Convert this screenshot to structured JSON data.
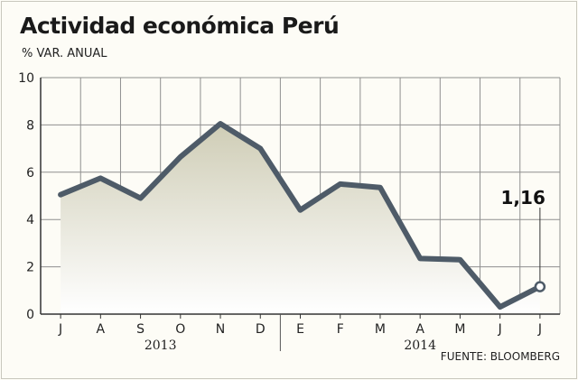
{
  "header": {
    "title": "Actividad económica Perú",
    "subtitle": "% VAR. ANUAL"
  },
  "footer": {
    "source": "FUENTE: BLOOMBERG"
  },
  "colors": {
    "line": "#4e5b68",
    "grid": "#8f8f8f",
    "area_top": "#cfcdb6",
    "area_bottom": "#ffffff"
  },
  "chart_data": {
    "type": "area",
    "categories": [
      "J",
      "A",
      "S",
      "O",
      "N",
      "D",
      "E",
      "F",
      "M",
      "A",
      "M",
      "J",
      "J"
    ],
    "groups": [
      {
        "label": "2013",
        "from": 0,
        "to": 5
      },
      {
        "label": "2014",
        "from": 6,
        "to": 12
      }
    ],
    "values": [
      5.05,
      5.75,
      4.9,
      6.65,
      8.05,
      7.0,
      4.4,
      5.5,
      5.35,
      2.35,
      2.3,
      0.3,
      1.16
    ],
    "callout": {
      "index": 12,
      "label": "1,16"
    },
    "ylim": [
      0,
      10
    ],
    "yticks": [
      "0",
      "2",
      "4",
      "6",
      "8",
      "10"
    ],
    "grid": true
  }
}
